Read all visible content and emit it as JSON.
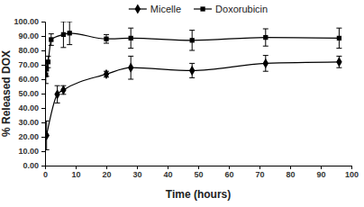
{
  "chart_data": {
    "type": "line",
    "x_label": "Time (hours)",
    "y_label": "% Released DOX",
    "xlim": [
      0,
      100
    ],
    "xticks": [
      0,
      10,
      20,
      30,
      40,
      50,
      60,
      70,
      80,
      90,
      100
    ],
    "ylim": [
      0,
      100
    ],
    "yticks": [
      {
        "value": 0,
        "label": "0.00"
      },
      {
        "value": 10,
        "label": "10.00"
      },
      {
        "value": 20,
        "label": "20.00"
      },
      {
        "value": 30,
        "label": "30.00"
      },
      {
        "value": 40,
        "label": "40.00"
      },
      {
        "value": 50,
        "label": "50.00"
      },
      {
        "value": 60,
        "label": "60.00"
      },
      {
        "value": 70,
        "label": "70.00"
      },
      {
        "value": 80,
        "label": "80.00"
      },
      {
        "value": 90,
        "label": "90.00"
      },
      {
        "value": 100,
        "label": "100.00"
      }
    ],
    "legend": "top",
    "series": [
      {
        "name": "Micelle",
        "color": "#000000",
        "marker": "diamond",
        "x": [
          0.5,
          4,
          6,
          20,
          28,
          48,
          72,
          96
        ],
        "values": [
          21,
          49.5,
          52.5,
          63.5,
          68,
          66,
          71,
          72
        ],
        "errors": [
          10,
          6,
          3,
          2,
          8,
          5,
          5.5,
          4
        ]
      },
      {
        "name": "Doxorubicin",
        "color": "#000000",
        "marker": "square",
        "x": [
          0.25,
          0.5,
          1,
          2,
          6,
          8,
          20,
          28,
          48,
          72,
          96
        ],
        "values": [
          63,
          67,
          72,
          87.5,
          91,
          92,
          88,
          88.5,
          87,
          89,
          88.5
        ],
        "errors": [
          6,
          5,
          4,
          4,
          9,
          8,
          3,
          7,
          7,
          6,
          7
        ]
      }
    ]
  }
}
